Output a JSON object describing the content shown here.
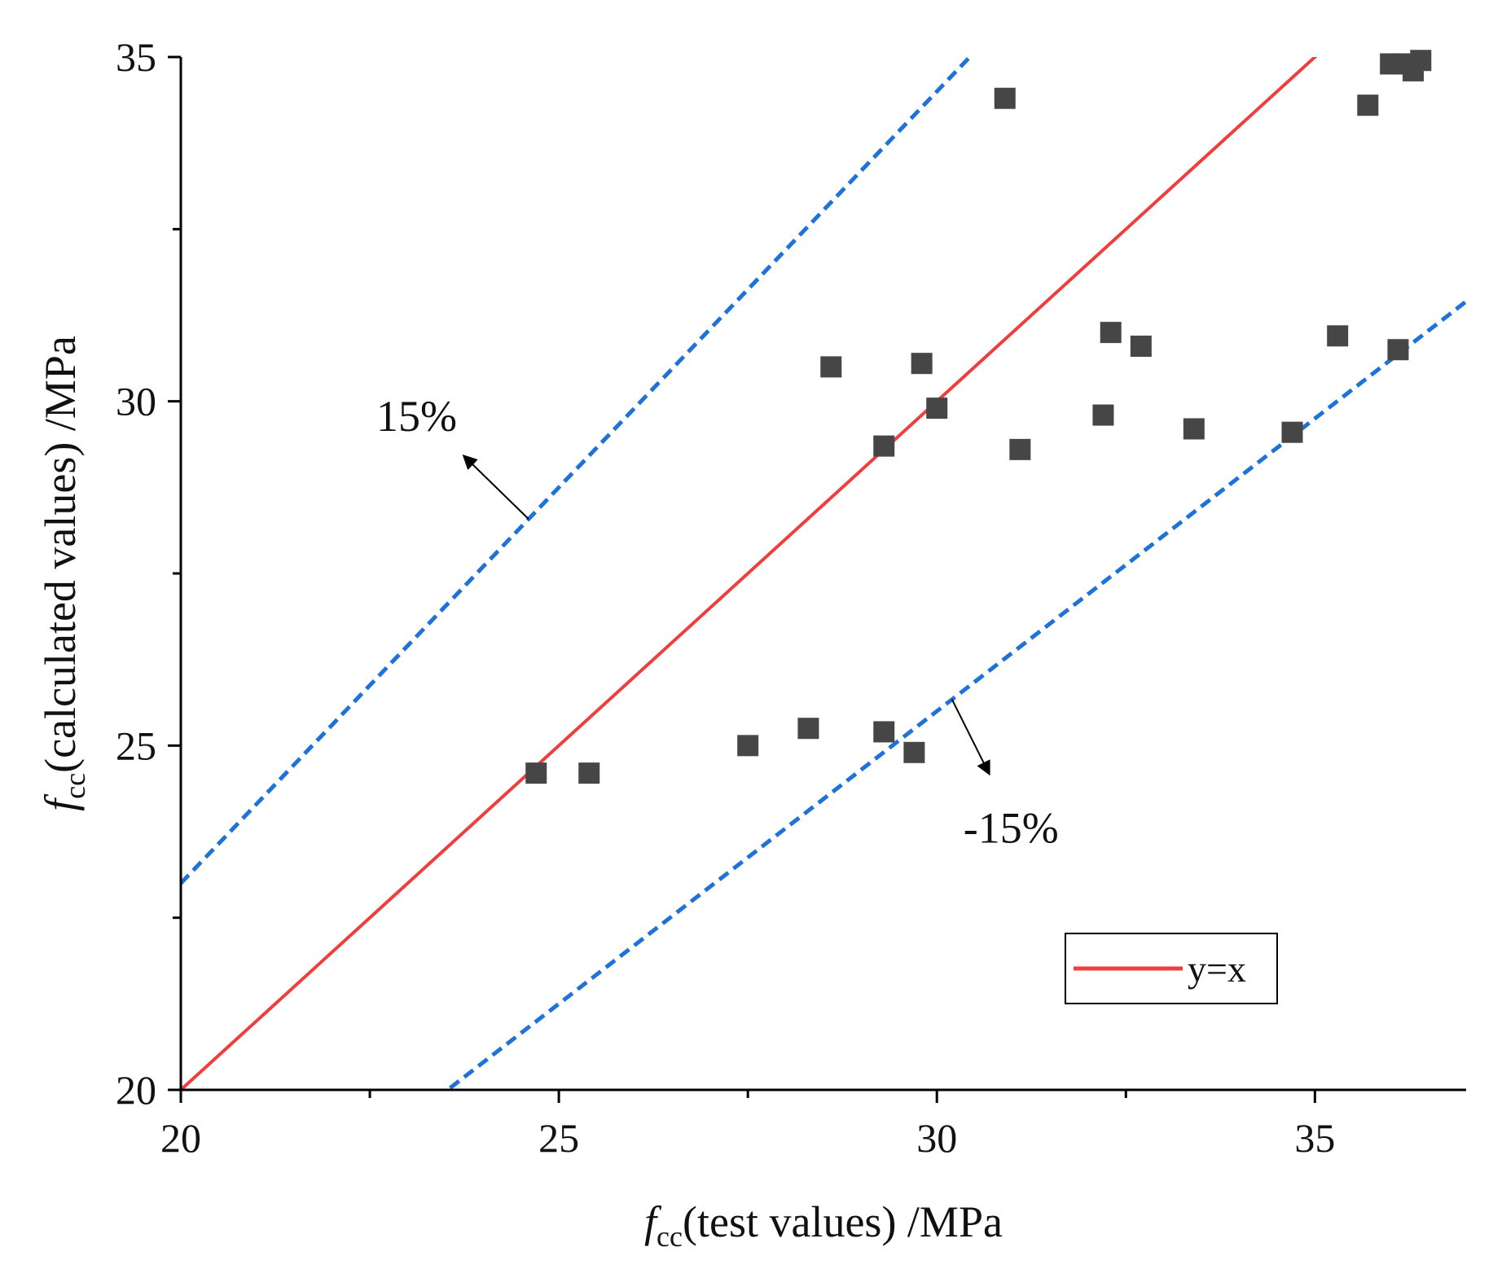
{
  "chart_data": {
    "type": "scatter",
    "xlabel": {
      "symbol": "f",
      "subscript": "cc",
      "rest": "(test values) /MPa"
    },
    "ylabel": {
      "symbol": "f",
      "subscript": "cc",
      "rest": "(calculated values) /MPa"
    },
    "xlim": [
      20,
      37
    ],
    "ylim": [
      20,
      35
    ],
    "x_ticks": [
      20,
      25,
      30,
      35
    ],
    "y_ticks": [
      20,
      25,
      30,
      35
    ],
    "x_minor_ticks": [
      22.5,
      27.5,
      32.5
    ],
    "y_minor_ticks": [
      22.5,
      27.5,
      32.5
    ],
    "grid": false,
    "legend_position": "bottom-right",
    "colors": {
      "points": "#464646",
      "identity_line": "#ef3e3e",
      "bound_lines": "#1e72d8",
      "axes": "#000000"
    },
    "lines": [
      {
        "name": "y=x",
        "slope": 1.0,
        "style": "solid",
        "in_legend": true
      },
      {
        "name": "upper bound",
        "slope": 1.15,
        "style": "dashed",
        "in_legend": false
      },
      {
        "name": "lower bound",
        "slope": 0.85,
        "style": "dashed",
        "in_legend": false
      }
    ],
    "annotations": [
      {
        "text": "15%",
        "line": "upper bound",
        "anchor_x": 24.6,
        "points_to": "upper-left"
      },
      {
        "text": "-15%",
        "line": "lower bound",
        "anchor_x": 30.2,
        "points_to": "lower-right"
      }
    ],
    "series": [
      {
        "name": "data",
        "marker": "square",
        "points": [
          [
            24.7,
            24.6
          ],
          [
            25.4,
            24.6
          ],
          [
            27.5,
            25.0
          ],
          [
            28.3,
            25.25
          ],
          [
            29.3,
            25.2
          ],
          [
            29.7,
            24.9
          ],
          [
            28.6,
            30.5
          ],
          [
            29.3,
            29.35
          ],
          [
            29.8,
            30.55
          ],
          [
            30.0,
            29.9
          ],
          [
            30.9,
            34.4
          ],
          [
            31.1,
            29.3
          ],
          [
            32.2,
            29.8
          ],
          [
            32.3,
            31.0
          ],
          [
            32.7,
            30.8
          ],
          [
            33.4,
            29.6
          ],
          [
            34.7,
            29.55
          ],
          [
            35.3,
            30.95
          ],
          [
            35.7,
            34.3
          ],
          [
            36.1,
            30.75
          ],
          [
            36.0,
            34.9
          ],
          [
            36.2,
            34.9
          ],
          [
            36.3,
            34.8
          ],
          [
            36.4,
            34.95
          ]
        ]
      }
    ]
  }
}
